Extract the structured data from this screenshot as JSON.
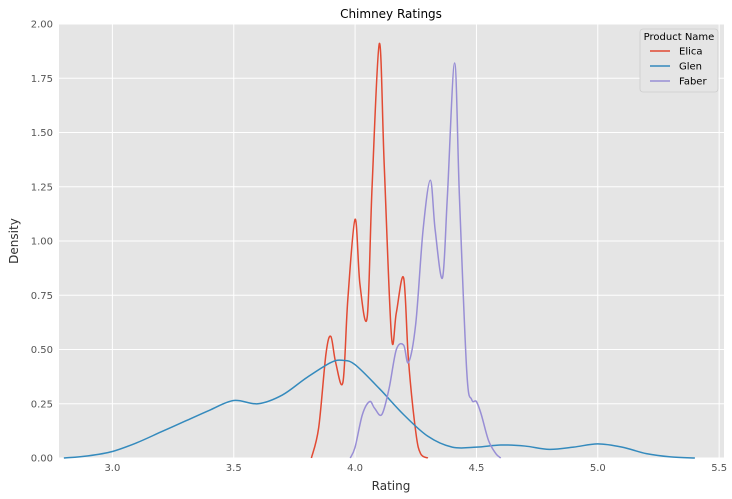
{
  "chart_data": {
    "type": "line",
    "title": "Chimney Ratings",
    "xlabel": "Rating",
    "ylabel": "Density",
    "xlim": [
      2.78,
      5.52
    ],
    "ylim": [
      0,
      2.0
    ],
    "x_ticks": [
      "3.0",
      "3.5",
      "4.0",
      "4.5",
      "5.0",
      "5.5"
    ],
    "y_ticks": [
      "0.00",
      "0.25",
      "0.50",
      "0.75",
      "1.00",
      "1.25",
      "1.50",
      "1.75",
      "2.00"
    ],
    "grid": true,
    "legend": {
      "title": "Product Name",
      "placement": "top-right"
    },
    "series": [
      {
        "name": "Elica",
        "color": "#e24a33",
        "x": [
          3.82,
          3.85,
          3.88,
          3.9,
          3.92,
          3.95,
          3.97,
          4.0,
          4.02,
          4.05,
          4.07,
          4.1,
          4.12,
          4.15,
          4.17,
          4.2,
          4.22,
          4.25,
          4.27,
          4.3
        ],
        "y": [
          0.0,
          0.14,
          0.48,
          0.56,
          0.44,
          0.35,
          0.73,
          1.1,
          0.8,
          0.65,
          1.25,
          1.91,
          1.35,
          0.56,
          0.67,
          0.83,
          0.45,
          0.12,
          0.02,
          0.0
        ]
      },
      {
        "name": "Glen",
        "color": "#348abd",
        "x": [
          2.8,
          2.9,
          3.0,
          3.1,
          3.2,
          3.3,
          3.4,
          3.5,
          3.6,
          3.7,
          3.8,
          3.9,
          3.95,
          4.0,
          4.1,
          4.2,
          4.3,
          4.4,
          4.5,
          4.6,
          4.7,
          4.8,
          4.9,
          5.0,
          5.1,
          5.2,
          5.3,
          5.4
        ],
        "y": [
          0.0,
          0.01,
          0.03,
          0.07,
          0.12,
          0.17,
          0.22,
          0.265,
          0.25,
          0.29,
          0.37,
          0.44,
          0.45,
          0.43,
          0.32,
          0.2,
          0.1,
          0.05,
          0.05,
          0.06,
          0.055,
          0.04,
          0.05,
          0.065,
          0.05,
          0.02,
          0.005,
          0.0
        ]
      },
      {
        "name": "Faber",
        "color": "#988ed5",
        "x": [
          3.98,
          4.0,
          4.03,
          4.06,
          4.08,
          4.11,
          4.14,
          4.17,
          4.2,
          4.22,
          4.25,
          4.28,
          4.31,
          4.33,
          4.36,
          4.38,
          4.41,
          4.43,
          4.46,
          4.48,
          4.5,
          4.52,
          4.55,
          4.58,
          4.6
        ],
        "y": [
          0.0,
          0.05,
          0.2,
          0.26,
          0.23,
          0.2,
          0.32,
          0.5,
          0.52,
          0.44,
          0.62,
          1.05,
          1.28,
          1.05,
          0.83,
          1.2,
          1.82,
          1.2,
          0.4,
          0.27,
          0.26,
          0.2,
          0.08,
          0.02,
          0.0
        ]
      }
    ]
  }
}
